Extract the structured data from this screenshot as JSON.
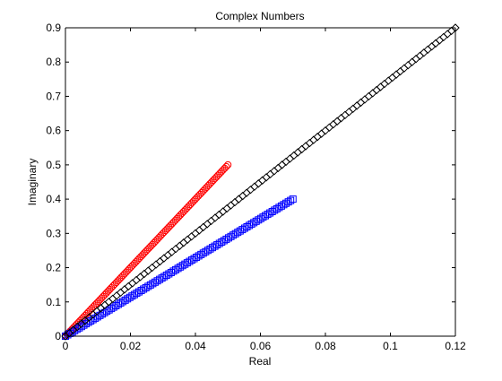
{
  "chart_data": {
    "type": "scatter",
    "title": "Complex Numbers",
    "xlabel": "Real",
    "ylabel": "Imaginary",
    "xlim": [
      0,
      0.12
    ],
    "ylim": [
      0,
      0.9
    ],
    "xticks": [
      0,
      0.02,
      0.04,
      0.06,
      0.08,
      0.1,
      0.12
    ],
    "xtick_labels": [
      "0",
      "0.02",
      "0.04",
      "0.06",
      "0.08",
      "0.1",
      "0.12"
    ],
    "yticks": [
      0,
      0.1,
      0.2,
      0.3,
      0.4,
      0.5,
      0.6,
      0.7,
      0.8,
      0.9
    ],
    "ytick_labels": [
      "0",
      "0.1",
      "0.2",
      "0.3",
      "0.4",
      "0.5",
      "0.6",
      "0.7",
      "0.8",
      "0.9"
    ],
    "grid": false,
    "legend": "none",
    "series": [
      {
        "marker": "circle",
        "color": "#ff0000",
        "x_range": [
          0,
          0.05
        ],
        "y_range": [
          0,
          0.5
        ],
        "points": 100
      },
      {
        "marker": "square",
        "color": "#0000ff",
        "x_range": [
          0,
          0.07
        ],
        "y_range": [
          0,
          0.4
        ],
        "points": 100
      },
      {
        "marker": "diamond",
        "color": "#000000",
        "x_range": [
          0,
          0.12
        ],
        "y_range": [
          0,
          0.9
        ],
        "points": 100
      }
    ]
  }
}
